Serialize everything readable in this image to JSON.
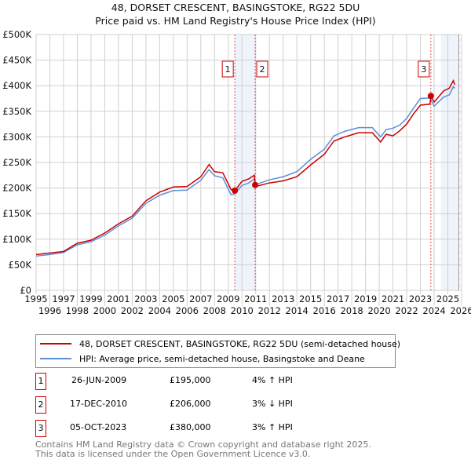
{
  "chart_data": {
    "type": "line",
    "title": "48, DORSET CRESCENT, BASINGSTOKE, RG22 5DU",
    "subtitle": "Price paid vs. HM Land Registry's House Price Index (HPI)",
    "xlim": [
      1995,
      2026
    ],
    "ylim": [
      0,
      500000
    ],
    "y_ticks": [
      "£0",
      "£50K",
      "£100K",
      "£150K",
      "£200K",
      "£250K",
      "£300K",
      "£350K",
      "£400K",
      "£450K",
      "£500K"
    ],
    "x_ticks": [
      "1995",
      "1996",
      "1997",
      "1998",
      "1999",
      "2000",
      "2001",
      "2002",
      "2003",
      "2004",
      "2005",
      "2006",
      "2007",
      "2008",
      "2009",
      "2010",
      "2011",
      "2012",
      "2013",
      "2014",
      "2015",
      "2016",
      "2017",
      "2018",
      "2019",
      "2020",
      "2021",
      "2022",
      "2023",
      "2024",
      "2025",
      "2026"
    ],
    "grid": true,
    "series": [
      {
        "name": "48, DORSET CRESCENT, BASINGSTOKE, RG22 5DU (semi-detached house)",
        "color": "#cc0000",
        "points": [
          [
            1995,
            70000
          ],
          [
            1996,
            73000
          ],
          [
            1997,
            76000
          ],
          [
            1998,
            92000
          ],
          [
            1999,
            98000
          ],
          [
            2000,
            112000
          ],
          [
            2001,
            130000
          ],
          [
            2002,
            145000
          ],
          [
            2003,
            175000
          ],
          [
            2004,
            192000
          ],
          [
            2005,
            202000
          ],
          [
            2006,
            203000
          ],
          [
            2007,
            222000
          ],
          [
            2007.6,
            246000
          ],
          [
            2008,
            232000
          ],
          [
            2008.6,
            230000
          ],
          [
            2009.2,
            197000
          ],
          [
            2009.48,
            195000
          ],
          [
            2010,
            213000
          ],
          [
            2010.5,
            218000
          ],
          [
            2010.9,
            225000
          ],
          [
            2010.96,
            206000
          ],
          [
            2011,
            203000
          ],
          [
            2012,
            210000
          ],
          [
            2013,
            214000
          ],
          [
            2014,
            222000
          ],
          [
            2015,
            245000
          ],
          [
            2016,
            266000
          ],
          [
            2016.7,
            292000
          ],
          [
            2017.5,
            300000
          ],
          [
            2018.5,
            308000
          ],
          [
            2019.5,
            308000
          ],
          [
            2020.1,
            290000
          ],
          [
            2020.5,
            305000
          ],
          [
            2021,
            302000
          ],
          [
            2021.5,
            312000
          ],
          [
            2022,
            325000
          ],
          [
            2022.5,
            345000
          ],
          [
            2023,
            362000
          ],
          [
            2023.7,
            364000
          ],
          [
            2023.76,
            380000
          ],
          [
            2024,
            368000
          ],
          [
            2024.7,
            390000
          ],
          [
            2025.1,
            395000
          ],
          [
            2025.4,
            410000
          ],
          [
            2025.5,
            402000
          ]
        ]
      },
      {
        "name": "HPI: Average price, semi-detached house, Basingstoke and Deane",
        "color": "#5b8fd6",
        "points": [
          [
            1995,
            67000
          ],
          [
            1996,
            70000
          ],
          [
            1997,
            74000
          ],
          [
            1998,
            89000
          ],
          [
            1999,
            95000
          ],
          [
            2000,
            108000
          ],
          [
            2001,
            126000
          ],
          [
            2002,
            141000
          ],
          [
            2003,
            170000
          ],
          [
            2004,
            186000
          ],
          [
            2005,
            195000
          ],
          [
            2006,
            196000
          ],
          [
            2007,
            215000
          ],
          [
            2007.6,
            236000
          ],
          [
            2008,
            224000
          ],
          [
            2008.6,
            220000
          ],
          [
            2009.2,
            187000
          ],
          [
            2009.48,
            189000
          ],
          [
            2010,
            205000
          ],
          [
            2010.5,
            210000
          ],
          [
            2010.9,
            218000
          ],
          [
            2011,
            207000
          ],
          [
            2012,
            216000
          ],
          [
            2013,
            222000
          ],
          [
            2014,
            232000
          ],
          [
            2015,
            256000
          ],
          [
            2016,
            276000
          ],
          [
            2016.7,
            302000
          ],
          [
            2017.5,
            311000
          ],
          [
            2018.5,
            318000
          ],
          [
            2019.5,
            318000
          ],
          [
            2020.1,
            300000
          ],
          [
            2020.5,
            314000
          ],
          [
            2021,
            317000
          ],
          [
            2021.5,
            323000
          ],
          [
            2022,
            336000
          ],
          [
            2022.5,
            356000
          ],
          [
            2023,
            375000
          ],
          [
            2023.7,
            376000
          ],
          [
            2024,
            360000
          ],
          [
            2024.7,
            378000
          ],
          [
            2025.1,
            382000
          ],
          [
            2025.4,
            398000
          ],
          [
            2025.5,
            395000
          ]
        ]
      }
    ],
    "sales": [
      {
        "label": "1",
        "date": "26-JUN-2009",
        "x": 2009.48,
        "price_value": 195000,
        "price": "£195,000",
        "hpi": "4% ↑ HPI"
      },
      {
        "label": "2",
        "date": "17-DEC-2010",
        "x": 2010.96,
        "price_value": 206000,
        "price": "£206,000",
        "hpi": "3% ↓ HPI"
      },
      {
        "label": "3",
        "date": "05-OCT-2023",
        "x": 2023.76,
        "price_value": 380000,
        "price": "£380,000",
        "hpi": "3% ↑ HPI"
      }
    ],
    "shaded_ranges": [
      [
        2009.48,
        2010.96
      ],
      [
        2024.5,
        2025.8
      ]
    ],
    "hatched_from": 2025.8
  },
  "footer": {
    "line1": "Contains HM Land Registry data © Crown copyright and database right 2025.",
    "line2": "This data is licensed under the Open Government Licence v3.0."
  }
}
